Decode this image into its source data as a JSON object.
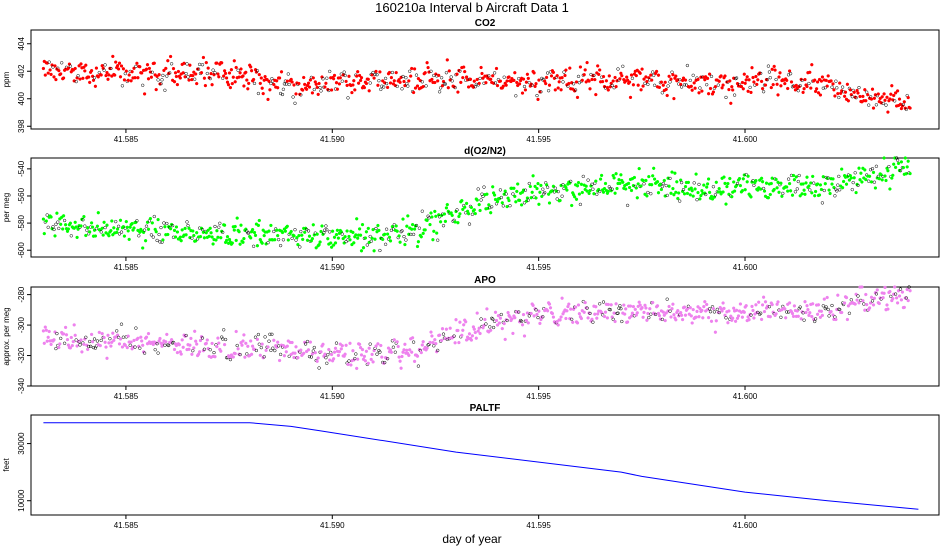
{
  "title": "160210a   Interval b Aircraft Data 1",
  "xlabel": "day of year",
  "chart_data": [
    {
      "type": "scatter",
      "title": "CO2",
      "ylabel": "ppm",
      "color": "#ff0000",
      "xlim": [
        41.5827,
        41.6047
      ],
      "ylim": [
        397.8,
        405.0
      ],
      "xticks": [
        41.585,
        41.59,
        41.595,
        41.6
      ],
      "xtick_labels": [
        "41.585",
        "41.590",
        "41.595",
        "41.600"
      ],
      "yticks": [
        398,
        400,
        402,
        404
      ],
      "ytick_labels": [
        "398",
        "400",
        "402",
        "404"
      ],
      "series": [
        {
          "name": "CO2",
          "x": [
            41.583,
            41.585,
            41.587,
            41.589,
            41.591,
            41.593,
            41.595,
            41.597,
            41.599,
            41.601,
            41.602,
            41.603,
            41.604
          ],
          "values": [
            402.0,
            401.8,
            401.9,
            401.0,
            401.3,
            401.5,
            401.2,
            401.4,
            401.1,
            401.3,
            400.9,
            399.9,
            399.8
          ]
        }
      ]
    },
    {
      "type": "scatter",
      "title": "d(O2/N2)",
      "ylabel": "per meg",
      "color": "#00ff00",
      "xlim": [
        41.5827,
        41.6047
      ],
      "ylim": [
        -605,
        -532
      ],
      "xticks": [
        41.585,
        41.59,
        41.595,
        41.6
      ],
      "xtick_labels": [
        "41.585",
        "41.590",
        "41.595",
        "41.600"
      ],
      "yticks": [
        -600,
        -580,
        -560,
        -540
      ],
      "ytick_labels": [
        "-600",
        "-580",
        "-560",
        "-540"
      ],
      "series": [
        {
          "name": "d(O2/N2)",
          "x": [
            41.583,
            41.585,
            41.587,
            41.589,
            41.591,
            41.592,
            41.593,
            41.594,
            41.595,
            41.597,
            41.599,
            41.601,
            41.602,
            41.603,
            41.604
          ],
          "values": [
            -582,
            -585,
            -587,
            -590,
            -590,
            -585,
            -573,
            -562,
            -556,
            -552,
            -555,
            -552,
            -553,
            -545,
            -538
          ]
        }
      ]
    },
    {
      "type": "scatter",
      "title": "APO",
      "ylabel": "approx. per meg",
      "color": "#ee82ee",
      "xlim": [
        41.5827,
        41.6047
      ],
      "ylim": [
        -340,
        -275
      ],
      "xticks": [
        41.585,
        41.59,
        41.595,
        41.6
      ],
      "xtick_labels": [
        "41.585",
        "41.590",
        "41.595",
        "41.600"
      ],
      "yticks": [
        -340,
        -320,
        -300,
        -280
      ],
      "ytick_labels": [
        "-340",
        "-320",
        "-300",
        "-280"
      ],
      "series": [
        {
          "name": "APO",
          "x": [
            41.583,
            41.585,
            41.587,
            41.589,
            41.591,
            41.592,
            41.593,
            41.594,
            41.595,
            41.597,
            41.599,
            41.601,
            41.602,
            41.603,
            41.604
          ],
          "values": [
            -308,
            -311,
            -314,
            -317,
            -320,
            -315,
            -305,
            -297,
            -293,
            -290,
            -292,
            -291,
            -290,
            -285,
            -280
          ]
        }
      ]
    },
    {
      "type": "line",
      "title": "PALTF",
      "ylabel": "feet",
      "color": "#0000ff",
      "xlim": [
        41.5827,
        41.6047
      ],
      "ylim": [
        5000,
        40000
      ],
      "xticks": [
        41.585,
        41.59,
        41.595,
        41.6
      ],
      "xtick_labels": [
        "41.585",
        "41.590",
        "41.595",
        "41.600"
      ],
      "yticks": [
        10000,
        30000
      ],
      "ytick_labels": [
        "10000",
        "30000"
      ],
      "series": [
        {
          "name": "PALTF",
          "x": [
            41.583,
            41.588,
            41.589,
            41.5897,
            41.593,
            41.597,
            41.5975,
            41.6,
            41.602,
            41.6042
          ],
          "values": [
            37300,
            37300,
            36000,
            34500,
            27000,
            20000,
            18500,
            13000,
            10000,
            7000
          ]
        }
      ]
    }
  ]
}
